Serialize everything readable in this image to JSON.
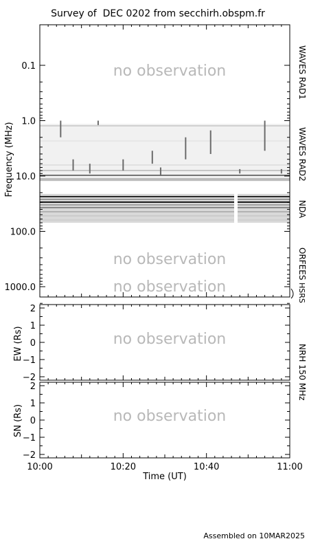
{
  "title": "Survey of  DEC 0202 from secchirh.obspm.fr",
  "footer": "Assembled on 10MAR2025",
  "no_obs_label": "no observation",
  "colors": {
    "axis": "#000000",
    "no_obs": "#b8b8b8",
    "spectrum": "#808080"
  },
  "chart_data": [
    {
      "type": "heatmap",
      "name": "dynamic-spectrum",
      "ylabel": "Frequency (MHz)",
      "yscale": "log",
      "yreversed": true,
      "ylim": [
        0.2,
        2000
      ],
      "y_ticks": [
        "0.1",
        "1.0",
        "10.0",
        "100.0",
        "1000.0"
      ],
      "xlim": [
        "10:00",
        "11:00"
      ],
      "bands": [
        {
          "label": "WAVES RAD1",
          "freq_range": [
            0.02,
            1.0
          ],
          "status": "no observation"
        },
        {
          "label": "WAVES RAD2",
          "freq_range": [
            1.0,
            13.8
          ],
          "status": "observed"
        },
        {
          "label": "NDA",
          "freq_range": [
            20,
            80
          ],
          "status": "observed",
          "gap": [
            "10:47",
            "10:48"
          ]
        },
        {
          "label": "ORFEES",
          "freq_range": [
            140,
            1000
          ],
          "status": "no observation"
        },
        {
          "label": "HSRS",
          "freq_range": [
            1000,
            2000
          ],
          "status": "no observation"
        }
      ],
      "bursts": [
        {
          "time": "10:05",
          "freq_range": [
            1.0,
            2.0
          ]
        },
        {
          "time": "10:08",
          "freq_range": [
            5.0,
            8.0
          ]
        },
        {
          "time": "10:12",
          "freq_range": [
            6.0,
            9.0
          ]
        },
        {
          "time": "10:14",
          "freq_range": [
            1.0,
            1.2
          ]
        },
        {
          "time": "10:20",
          "freq_range": [
            5.0,
            8.0
          ]
        },
        {
          "time": "10:27",
          "freq_range": [
            3.5,
            6.0
          ]
        },
        {
          "time": "10:29",
          "freq_range": [
            7.0,
            10.0
          ]
        },
        {
          "time": "10:35",
          "freq_range": [
            2.0,
            5.0
          ]
        },
        {
          "time": "10:41",
          "freq_range": [
            1.5,
            4.0
          ]
        },
        {
          "time": "10:48",
          "freq_range": [
            7.5,
            9.0
          ]
        },
        {
          "time": "10:54",
          "freq_range": [
            1.0,
            3.5
          ]
        },
        {
          "time": "10:58",
          "freq_range": [
            7.5,
            9.0
          ]
        }
      ]
    },
    {
      "type": "scatter",
      "name": "ew-panel",
      "ylabel": "EW (Rs)",
      "ylim": [
        -2.2,
        2.2
      ],
      "y_ticks": [
        "2",
        "1",
        "0",
        "−1",
        "−2"
      ],
      "xlim": [
        "10:00",
        "11:00"
      ],
      "status": "no observation"
    },
    {
      "type": "scatter",
      "name": "sn-panel",
      "ylabel": "SN (Rs)",
      "ylim": [
        -2.2,
        2.2
      ],
      "y_ticks": [
        "2",
        "1",
        "0",
        "−1",
        "−2"
      ],
      "xlim": [
        "10:00",
        "11:00"
      ],
      "x_ticks": [
        "10:00",
        "10:20",
        "10:40",
        "11:00"
      ],
      "xlabel": "Time (UT)",
      "status": "no observation"
    }
  ],
  "nrh_label": "NRH 150 MHz"
}
